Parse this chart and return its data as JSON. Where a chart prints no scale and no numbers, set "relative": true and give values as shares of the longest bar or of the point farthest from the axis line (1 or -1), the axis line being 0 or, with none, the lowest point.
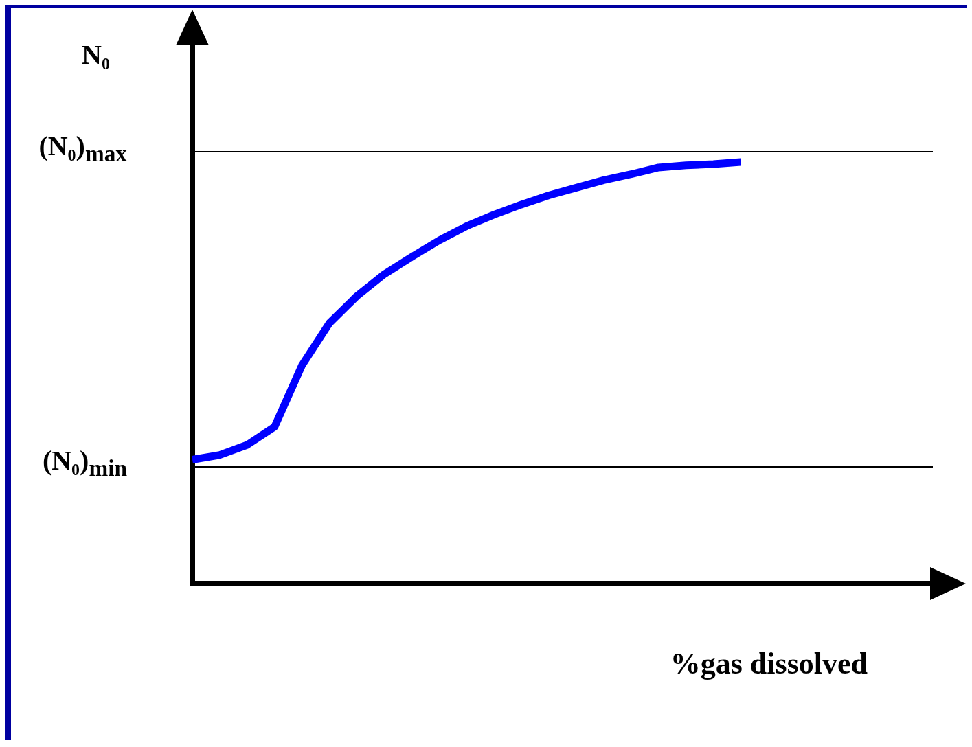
{
  "chart_data": {
    "type": "line",
    "ylabel": "N₀",
    "xlabel": "%gas dissolved",
    "relative": true,
    "marker": "none",
    "line_style": "solid",
    "categories": [
      null,
      null,
      null,
      null,
      null,
      null,
      null,
      null,
      null,
      null,
      null,
      null,
      null,
      null,
      null,
      null,
      null,
      null,
      null,
      null,
      null,
      null,
      null,
      null,
      null,
      null,
      null,
      null
    ],
    "series": [
      {
        "color": "#0000ff",
        "values": [
          0.294,
          0.305,
          0.329,
          0.372,
          0.518,
          0.618,
          0.682,
          0.734,
          0.775,
          0.814,
          0.848,
          0.875,
          0.899,
          0.921,
          0.939,
          0.957,
          0.971,
          0.987,
          0.992,
          0.995,
          1,
          null,
          null,
          null,
          null,
          null,
          null,
          null
        ]
      }
    ],
    "ref_lines": [
      {
        "axis": "y",
        "value": 1.024,
        "label": "(N₀)$_{max}$",
        "color": "#000000"
      },
      {
        "axis": "y",
        "value": 0.278,
        "label": "(N₀)$_{min}$",
        "color": "#000000"
      }
    ]
  }
}
